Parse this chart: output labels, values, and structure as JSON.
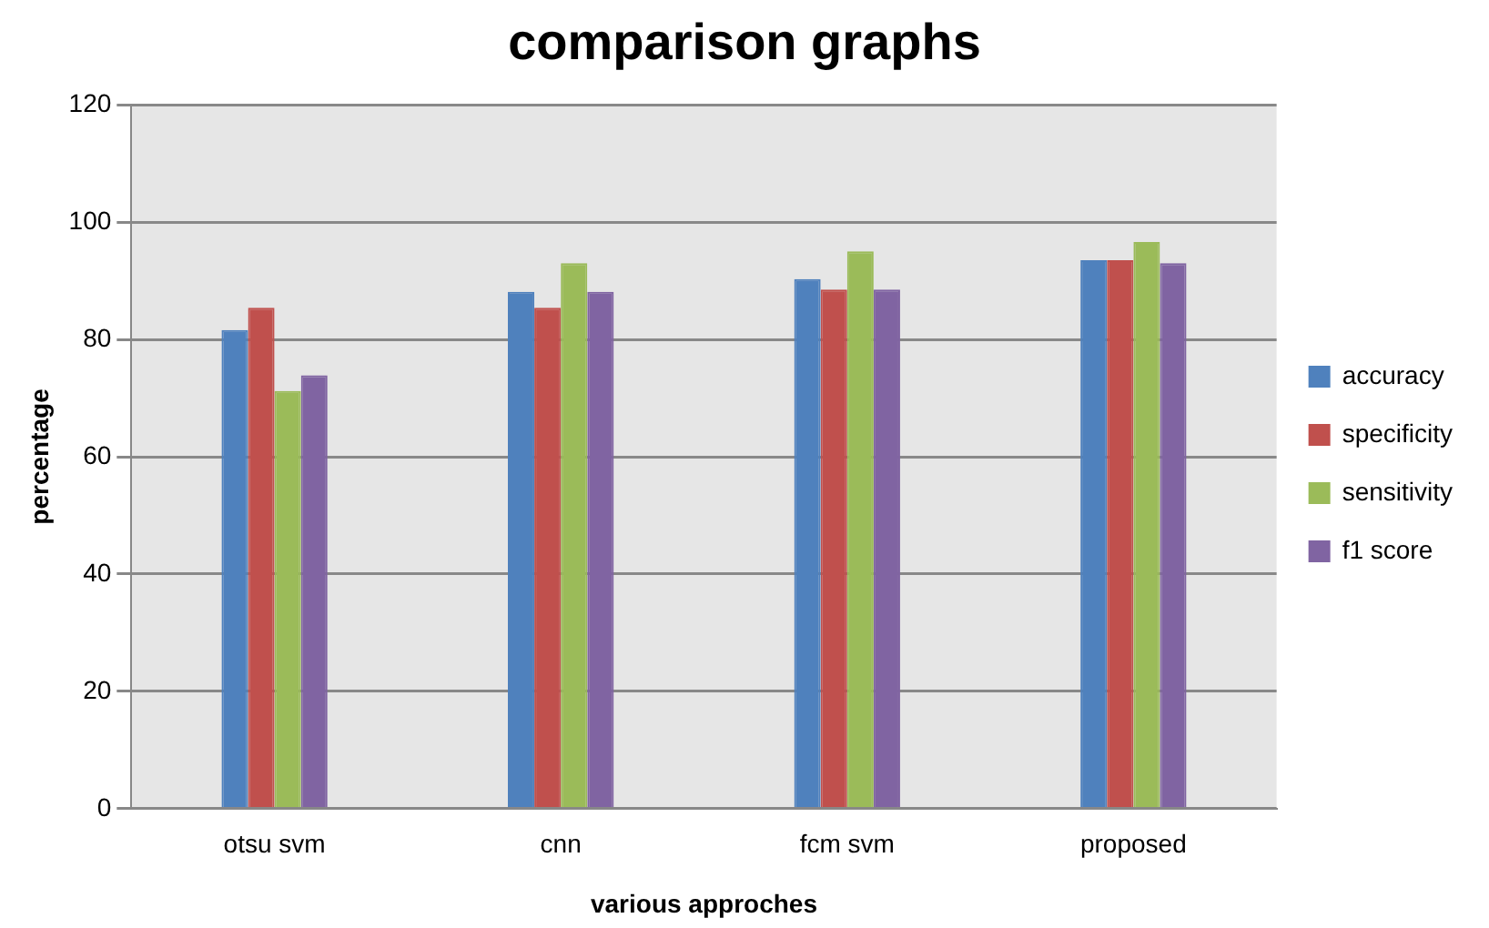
{
  "chart_data": {
    "type": "bar",
    "title": "comparison graphs",
    "xlabel": "various approches",
    "ylabel": "percentage",
    "categories": [
      "otsu svm",
      "cnn",
      "fcm svm",
      "proposed"
    ],
    "series": [
      {
        "name": "accuracy",
        "color": "#4f81bd",
        "values": [
          81.6,
          88.1,
          90.3,
          93.5
        ]
      },
      {
        "name": "specificity",
        "color": "#c0504d",
        "values": [
          85.4,
          85.4,
          88.5,
          93.5
        ]
      },
      {
        "name": "sensitivity",
        "color": "#9bbb59",
        "values": [
          71.2,
          93.0,
          95.0,
          96.6
        ]
      },
      {
        "name": "f1 score",
        "color": "#8064a2",
        "values": [
          73.9,
          88.1,
          88.5,
          93.0
        ]
      }
    ],
    "ylim": [
      0,
      120
    ],
    "yticks": [
      0,
      20,
      40,
      60,
      80,
      100,
      120
    ],
    "grid": "y",
    "legend": "right"
  }
}
